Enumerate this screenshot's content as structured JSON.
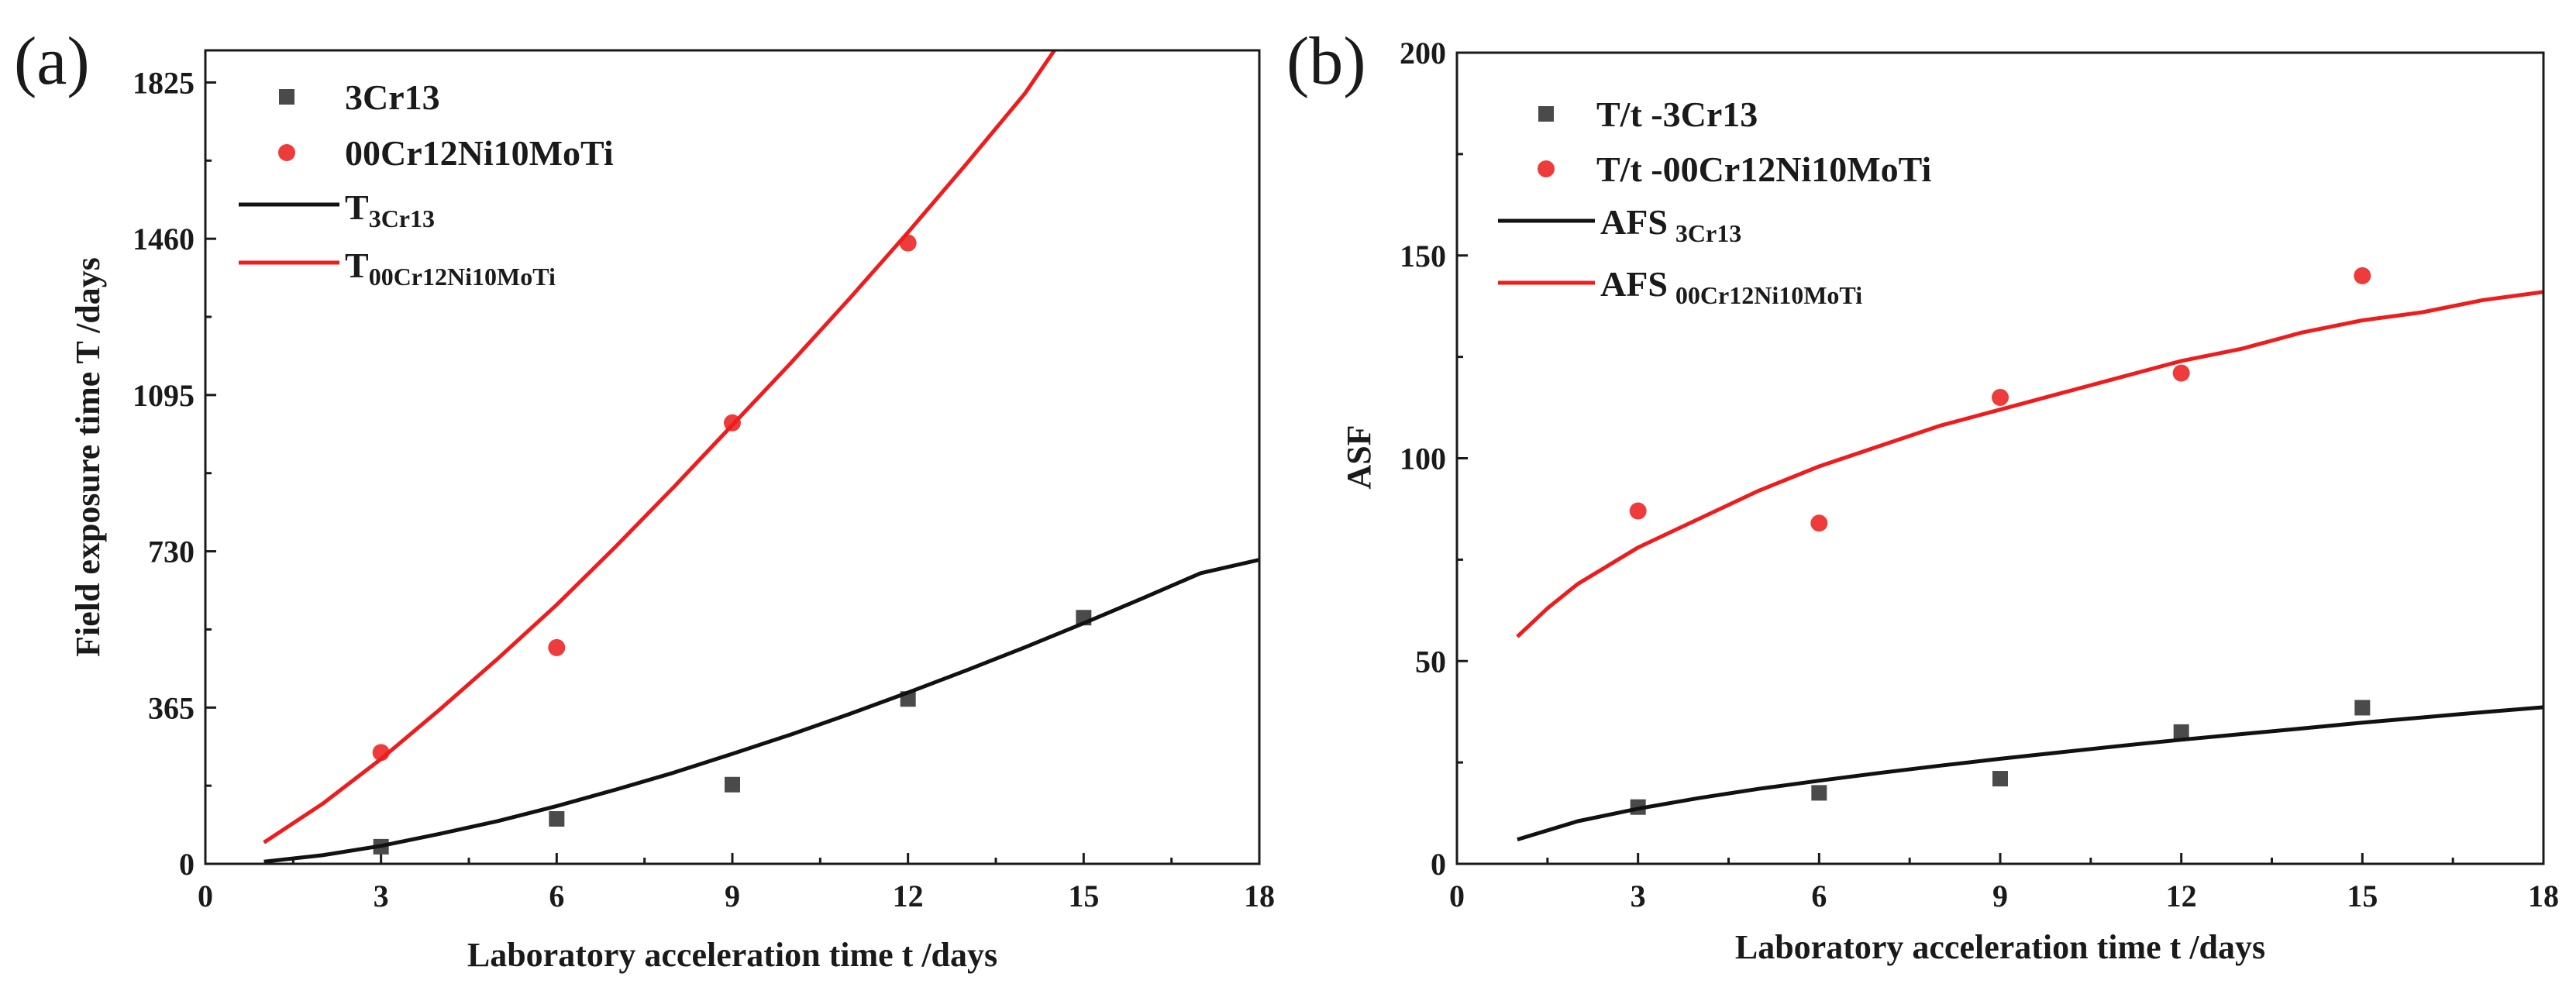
{
  "colors": {
    "black_series": "#4a4a4a",
    "red_series": "#ee3b3b",
    "black_line": "#111111",
    "red_line": "#ee1c1c"
  },
  "chart_data": [
    {
      "id": "a",
      "type": "scatter",
      "panel_label": "(a)",
      "xlabel": "Laboratory acceleration time t /days",
      "ylabel": "Field exposure time T /days",
      "xlim": [
        0,
        18
      ],
      "ylim": [
        0,
        1900
      ],
      "xticks": [
        0,
        3,
        6,
        9,
        12,
        15,
        18
      ],
      "yticks": [
        0,
        365,
        730,
        1095,
        1460,
        1825
      ],
      "legend_position": "top-left",
      "series": [
        {
          "name": "3Cr13",
          "kind": "points",
          "marker": "square",
          "color": "#4a4a4a",
          "x": [
            3,
            6,
            9,
            12,
            15
          ],
          "y": [
            40,
            105,
            185,
            385,
            575
          ]
        },
        {
          "name": "00Cr12Ni10MoTi",
          "kind": "points",
          "marker": "circle",
          "color": "#ee3b3b",
          "x": [
            3,
            6,
            9,
            12,
            15
          ],
          "y": [
            260,
            505,
            1030,
            1450,
            null
          ]
        },
        {
          "name": "T",
          "name_sub": "3Cr13",
          "kind": "line",
          "color": "#111111",
          "x": [
            1,
            2,
            3,
            4,
            5,
            6,
            7,
            8,
            9,
            10,
            11,
            12,
            13,
            14,
            15,
            16,
            17,
            18
          ],
          "y": [
            5,
            20,
            42,
            70,
            100,
            135,
            173,
            213,
            257,
            302,
            350,
            400,
            452,
            506,
            562,
            620,
            679,
            710
          ]
        },
        {
          "name": "T",
          "name_sub": "00Cr12Ni10MoTi",
          "kind": "line",
          "color": "#ee1c1c",
          "x": [
            1,
            2,
            3,
            4,
            5,
            6,
            7,
            8,
            9,
            10,
            11,
            12,
            13,
            14,
            14.5
          ],
          "y": [
            50,
            140,
            245,
            360,
            480,
            605,
            740,
            880,
            1025,
            1170,
            1320,
            1475,
            1635,
            1800,
            1900
          ]
        }
      ]
    },
    {
      "id": "b",
      "type": "scatter",
      "panel_label": "(b)",
      "xlabel": "Laboratory acceleration time t /days",
      "ylabel": "ASF",
      "xlim": [
        0,
        18
      ],
      "ylim": [
        0,
        200
      ],
      "xticks": [
        0,
        3,
        6,
        9,
        12,
        15,
        18
      ],
      "yticks": [
        0,
        50,
        100,
        150,
        200
      ],
      "legend_position": "top-left",
      "series": [
        {
          "name": "T/t -3Cr13",
          "kind": "points",
          "marker": "square",
          "color": "#4a4a4a",
          "x": [
            3,
            6,
            9,
            12,
            15
          ],
          "y": [
            14,
            17.5,
            21,
            32.5,
            38.5
          ]
        },
        {
          "name": "T/t -00Cr12Ni10MoTi",
          "kind": "points",
          "marker": "circle",
          "color": "#ee3b3b",
          "x": [
            3,
            6,
            9,
            12,
            15
          ],
          "y": [
            87,
            84,
            115,
            121,
            145
          ]
        },
        {
          "name": "AFS",
          "name_sub": "3Cr13",
          "kind": "line",
          "color": "#111111",
          "x": [
            1,
            2,
            3,
            4,
            5,
            6,
            7,
            8,
            9,
            10,
            11,
            12,
            13,
            14,
            15,
            16,
            17,
            18
          ],
          "y": [
            6,
            10.5,
            13.6,
            16.2,
            18.5,
            20.5,
            22.4,
            24.2,
            25.9,
            27.5,
            29.1,
            30.6,
            32.0,
            33.4,
            34.8,
            36.1,
            37.4,
            38.6
          ]
        },
        {
          "name": "AFS",
          "name_sub": "00Cr12Ni10MoTi",
          "kind": "line",
          "color": "#ee1c1c",
          "x": [
            1,
            1.5,
            2,
            3,
            4,
            5,
            6,
            7,
            8,
            9,
            10,
            11,
            12,
            13,
            14,
            15,
            16,
            17,
            18
          ],
          "y": [
            56,
            63,
            69,
            78,
            85,
            92,
            98,
            103,
            108,
            112,
            116,
            120,
            124,
            127,
            131,
            134,
            136,
            139,
            141
          ]
        }
      ]
    }
  ]
}
